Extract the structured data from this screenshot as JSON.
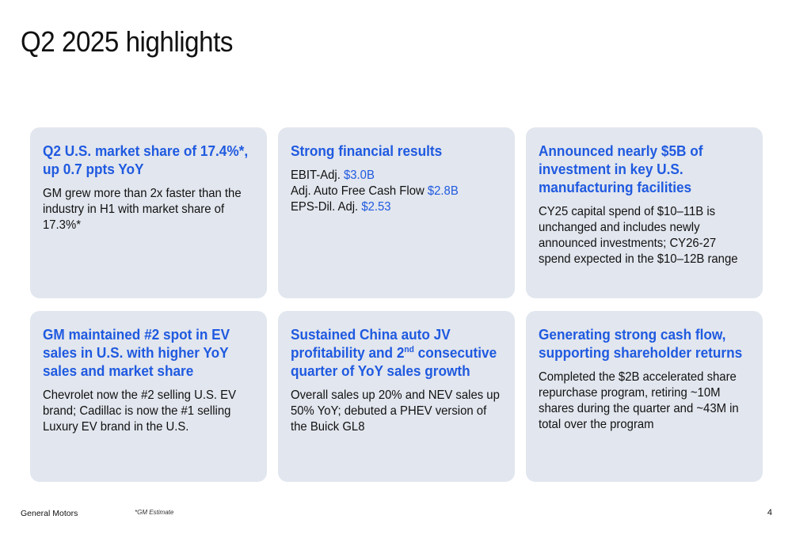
{
  "slide": {
    "title": "Q2 2025 highlights"
  },
  "cards": [
    {
      "heading": "Q2 U.S. market share of 17.4%*, up 0.7 ppts YoY",
      "body": "GM grew more than 2x faster than the industry in H1 with market share of 17.3%*"
    },
    {
      "heading": "Strong financial results",
      "lines": [
        {
          "label": "EBIT-Adj.",
          "value": "$3.0B"
        },
        {
          "label": "Adj. Auto Free Cash Flow",
          "value": "$2.8B"
        },
        {
          "label": "EPS-Dil. Adj.",
          "value": "$2.53"
        }
      ]
    },
    {
      "heading": "Announced nearly $5B of investment in key U.S. manufacturing facilities",
      "body": "CY25 capital spend of $10–11B is unchanged and includes newly announced investments; CY26-27 spend expected in the $10–12B range"
    },
    {
      "heading": "GM maintained #2 spot in EV sales in U.S. with higher YoY sales and market share",
      "body": "Chevrolet now the #2 selling U.S. EV brand; Cadillac is now the #1 selling Luxury EV brand in the U.S."
    },
    {
      "heading_pre": "Sustained China auto JV profitability and 2",
      "heading_sup": "nd",
      "heading_post": " consecutive quarter of YoY sales growth",
      "body": "Overall sales up 20% and NEV sales up 50% YoY; debuted a PHEV version of the Buick GL8"
    },
    {
      "heading": "Generating strong cash flow, supporting shareholder returns",
      "body": "Completed the $2B accelerated share repurchase program, retiring ~10M shares during the quarter and ~43M in total over the program"
    }
  ],
  "footer": {
    "company": "General Motors",
    "footnote": "*GM Estimate",
    "page_number": "4"
  },
  "colors": {
    "accent": "#1f5ae0",
    "card_bg": "#e2e6ee",
    "text": "#111111"
  }
}
